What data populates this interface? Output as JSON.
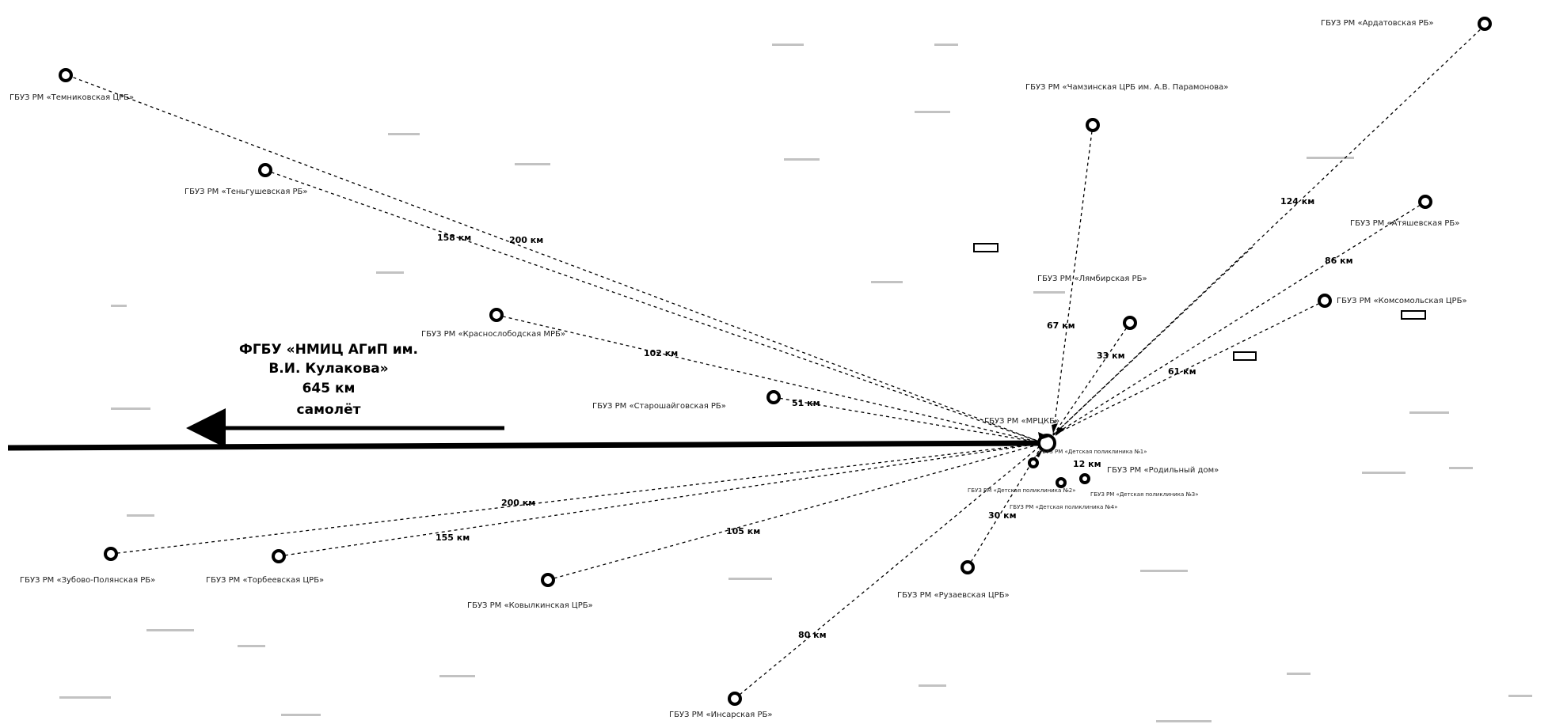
{
  "main_route": {
    "destination_line1": "ФГБУ «НМИЦ АГиП им.",
    "destination_line2": "В.И. Кулакова»",
    "distance": "645 км",
    "transport": "самолёт"
  },
  "hospitals": [
    {
      "id": "h_top_left",
      "name": "ГБУЗ РМ «Темниковская ЦРБ»"
    },
    {
      "id": "h_temnikov",
      "name": "ГБУЗ РМ «Теньгушевская РБ»"
    },
    {
      "id": "h_krasnoslob",
      "name": "ГБУЗ РМ «Краснослободская МРБ»"
    },
    {
      "id": "h_staroshaig",
      "name": "ГБУЗ РМ «Старошайговская РБ»"
    },
    {
      "id": "h_zubova",
      "name": "ГБУЗ РМ «Зубово-Полянская РБ»"
    },
    {
      "id": "h_torbeevo",
      "name": "ГБУЗ РМ «Торбеевская ЦРБ»"
    },
    {
      "id": "h_kovylkino",
      "name": "ГБУЗ РМ «Ковылкинская ЦРБ»"
    },
    {
      "id": "h_ruzaevka",
      "name": "ГБУЗ РМ «Рузаевская ЦРБ»"
    },
    {
      "id": "h_south",
      "name": "ГБУЗ РМ «Инсарская РБ»"
    },
    {
      "id": "h_ardatov",
      "name": "ГБУЗ РМ «Ардатовская РБ»"
    },
    {
      "id": "h_atyashevo",
      "name": "ГБУЗ РМ «Атяшевская РБ»"
    },
    {
      "id": "h_komsomol",
      "name": "ГБУЗ РМ «Комсомольская ЦРБ»"
    },
    {
      "id": "h_north",
      "name": "ГБУЗ РМ «Чамзинская ЦРБ им. А.В. Парамонова»"
    },
    {
      "id": "h_lyambir",
      "name": "ГБУЗ РМ «Лямбирская РБ»"
    },
    {
      "id": "h_roddom",
      "name": "ГБУЗ РМ «Родильный дом»"
    },
    {
      "id": "h_center",
      "name": "ГБУЗ РМ «МРЦКБ»"
    }
  ],
  "distances": [
    "158 км",
    "200 км",
    "102 км",
    "51 км",
    "200 км",
    "155 км",
    "105 км",
    "80 км",
    "30 км",
    "12 км",
    "67 км",
    "33 км",
    "61 км",
    "86 км",
    "124 км"
  ],
  "clinics": [
    "ГБУЗ РМ «Детская поликлиника №1»",
    "ГБУЗ РМ «Детская поликлиника №2»",
    "ГБУЗ РМ «Детская поликлиника №3»",
    "ГБУЗ РМ «Детская поликлиника №4»"
  ],
  "colors": {
    "route": "#000000",
    "marker": "#000000",
    "label": "#222222",
    "background": "#ffffff"
  }
}
